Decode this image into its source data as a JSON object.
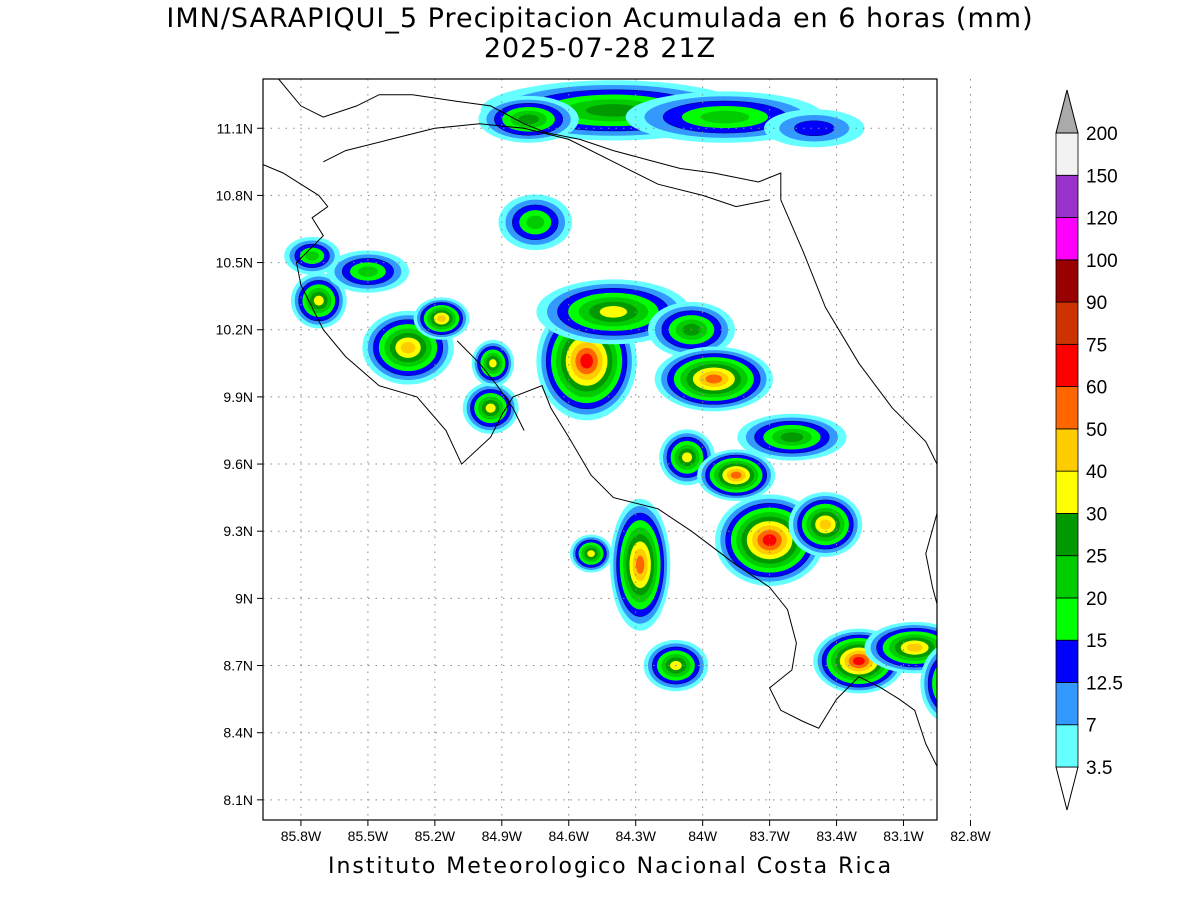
{
  "title": {
    "line1": "IMN/SARAPIQUI_5 Precipitacion Acumulada en 6 horas (mm)",
    "line2": "2025-07-28 21Z"
  },
  "footer": "Instituto Meteorologico Nacional Costa Rica",
  "map": {
    "lon_range": [
      -85.97,
      -82.95
    ],
    "lat_range": [
      8.01,
      11.32
    ],
    "lat_ticks": [
      {
        "v": 11.1,
        "label": "11.1N"
      },
      {
        "v": 10.8,
        "label": "10.8N"
      },
      {
        "v": 10.5,
        "label": "10.5N"
      },
      {
        "v": 10.2,
        "label": "10.2N"
      },
      {
        "v": 9.9,
        "label": "9.9N"
      },
      {
        "v": 9.6,
        "label": "9.6N"
      },
      {
        "v": 9.3,
        "label": "9.3N"
      },
      {
        "v": 9.0,
        "label": "9N"
      },
      {
        "v": 8.7,
        "label": "8.7N"
      },
      {
        "v": 8.4,
        "label": "8.4N"
      },
      {
        "v": 8.1,
        "label": "8.1N"
      }
    ],
    "lon_ticks": [
      {
        "v": -85.8,
        "label": "85.8W"
      },
      {
        "v": -85.5,
        "label": "85.5W"
      },
      {
        "v": -85.2,
        "label": "85.2W"
      },
      {
        "v": -84.9,
        "label": "84.9W"
      },
      {
        "v": -84.6,
        "label": "84.6W"
      },
      {
        "v": -84.3,
        "label": "84.3W"
      },
      {
        "v": -84.0,
        "label": "84W"
      },
      {
        "v": -83.7,
        "label": "83.7W"
      },
      {
        "v": -83.4,
        "label": "83.4W"
      },
      {
        "v": -83.1,
        "label": "83.1W"
      },
      {
        "v": -82.8,
        "label": "82.8W"
      }
    ],
    "grid": true,
    "rain_cells": [
      {
        "lon": -84.4,
        "lat": 11.18,
        "rx": 0.55,
        "ry": 0.09,
        "peak": 25
      },
      {
        "lon": -83.9,
        "lat": 11.15,
        "rx": 0.4,
        "ry": 0.07,
        "peak": 20
      },
      {
        "lon": -84.78,
        "lat": 11.14,
        "rx": 0.18,
        "ry": 0.06,
        "peak": 25
      },
      {
        "lon": -83.5,
        "lat": 11.1,
        "rx": 0.18,
        "ry": 0.04,
        "peak": 12.5
      },
      {
        "lon": -84.75,
        "lat": 10.68,
        "rx": 0.12,
        "ry": 0.08,
        "peak": 20
      },
      {
        "lon": -85.32,
        "lat": 10.12,
        "rx": 0.16,
        "ry": 0.12,
        "peak": 40
      },
      {
        "lon": -85.72,
        "lat": 10.33,
        "rx": 0.08,
        "ry": 0.08,
        "peak": 30
      },
      {
        "lon": -85.17,
        "lat": 10.25,
        "rx": 0.08,
        "ry": 0.05,
        "peak": 40
      },
      {
        "lon": -84.52,
        "lat": 10.06,
        "rx": 0.18,
        "ry": 0.22,
        "peak": 60
      },
      {
        "lon": -84.4,
        "lat": 10.28,
        "rx": 0.3,
        "ry": 0.1,
        "peak": 30
      },
      {
        "lon": -84.05,
        "lat": 10.2,
        "rx": 0.15,
        "ry": 0.08,
        "peak": 25
      },
      {
        "lon": -83.95,
        "lat": 9.98,
        "rx": 0.22,
        "ry": 0.1,
        "peak": 50
      },
      {
        "lon": -84.07,
        "lat": 9.63,
        "rx": 0.08,
        "ry": 0.08,
        "peak": 30
      },
      {
        "lon": -83.85,
        "lat": 9.55,
        "rx": 0.13,
        "ry": 0.07,
        "peak": 50
      },
      {
        "lon": -83.6,
        "lat": 9.72,
        "rx": 0.2,
        "ry": 0.06,
        "peak": 25
      },
      {
        "lon": -83.7,
        "lat": 9.26,
        "rx": 0.2,
        "ry": 0.16,
        "peak": 60
      },
      {
        "lon": -83.45,
        "lat": 9.33,
        "rx": 0.12,
        "ry": 0.1,
        "peak": 40
      },
      {
        "lon": -84.28,
        "lat": 9.15,
        "rx": 0.09,
        "ry": 0.25,
        "peak": 50
      },
      {
        "lon": -84.5,
        "lat": 9.2,
        "rx": 0.05,
        "ry": 0.04,
        "peak": 30
      },
      {
        "lon": -84.12,
        "lat": 8.7,
        "rx": 0.1,
        "ry": 0.07,
        "peak": 30
      },
      {
        "lon": -83.3,
        "lat": 8.72,
        "rx": 0.16,
        "ry": 0.1,
        "peak": 60
      },
      {
        "lon": -83.05,
        "lat": 8.78,
        "rx": 0.18,
        "ry": 0.07,
        "peak": 40
      },
      {
        "lon": -82.88,
        "lat": 8.62,
        "rx": 0.1,
        "ry": 0.14,
        "peak": 40
      },
      {
        "lon": -84.95,
        "lat": 9.85,
        "rx": 0.08,
        "ry": 0.07,
        "peak": 30
      },
      {
        "lon": -84.94,
        "lat": 10.05,
        "rx": 0.05,
        "ry": 0.06,
        "peak": 30
      },
      {
        "lon": -85.5,
        "lat": 10.46,
        "rx": 0.14,
        "ry": 0.05,
        "peak": 20
      },
      {
        "lon": -85.75,
        "lat": 10.53,
        "rx": 0.08,
        "ry": 0.04,
        "peak": 20
      }
    ]
  },
  "colorbar": {
    "levels": [
      "3.5",
      "7",
      "12.5",
      "15",
      "20",
      "25",
      "30",
      "40",
      "50",
      "60",
      "75",
      "90",
      "100",
      "120",
      "150",
      "200"
    ],
    "colors": [
      "#66ffff",
      "#3399ff",
      "#0000ff",
      "#00ff00",
      "#00cc00",
      "#009900",
      "#ffff00",
      "#ffcc00",
      "#ff6600",
      "#ff0000",
      "#cc3300",
      "#990000",
      "#ff00ff",
      "#9933cc",
      "#f2f2f2",
      "#aaaaaa"
    ]
  }
}
